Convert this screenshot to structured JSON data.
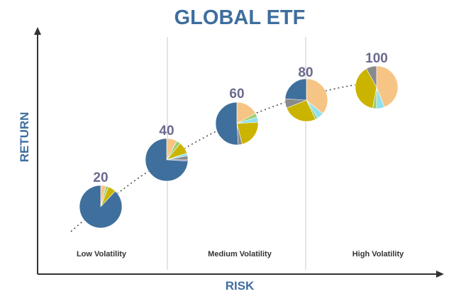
{
  "title": "GLOBAL ETF",
  "y_axis_label": "RETURN",
  "x_axis_label": "RISK",
  "regions": [
    {
      "label": "Low Volatility"
    },
    {
      "label": "Medium Volatility"
    },
    {
      "label": "High Volatility"
    }
  ],
  "colors": {
    "title": "#3e6e9e",
    "number_label": "#6a6a8e",
    "axis": "#333333",
    "divider": "#c8c8c8",
    "curve": "#444444",
    "slice_blue": "#3f6f9c",
    "slice_peach": "#f6c484",
    "slice_green": "#9bcf73",
    "slice_olive": "#cbb400",
    "slice_cyan": "#8fe0f0",
    "slice_gray": "#8a8a8a",
    "slice_purple": "#7a6fae"
  },
  "portfolios": [
    {
      "label": "20",
      "slices": [
        {
          "color": "slice_peach",
          "value": 0.04
        },
        {
          "color": "slice_green",
          "value": 0.02
        },
        {
          "color": "slice_olive",
          "value": 0.06
        },
        {
          "color": "slice_blue",
          "value": 0.88
        }
      ]
    },
    {
      "label": "40",
      "slices": [
        {
          "color": "slice_peach",
          "value": 0.08
        },
        {
          "color": "slice_green",
          "value": 0.03
        },
        {
          "color": "slice_olive",
          "value": 0.09
        },
        {
          "color": "slice_cyan",
          "value": 0.02
        },
        {
          "color": "slice_gray",
          "value": 0.03
        },
        {
          "color": "slice_purple",
          "value": 0.01
        },
        {
          "color": "slice_blue",
          "value": 0.74
        }
      ]
    },
    {
      "label": "60",
      "slices": [
        {
          "color": "slice_peach",
          "value": 0.17
        },
        {
          "color": "slice_green",
          "value": 0.03
        },
        {
          "color": "slice_cyan",
          "value": 0.04
        },
        {
          "color": "slice_olive",
          "value": 0.22
        },
        {
          "color": "slice_gray",
          "value": 0.03
        },
        {
          "color": "slice_blue",
          "value": 0.51
        }
      ]
    },
    {
      "label": "80",
      "slices": [
        {
          "color": "slice_peach",
          "value": 0.36
        },
        {
          "color": "slice_cyan",
          "value": 0.05
        },
        {
          "color": "slice_green",
          "value": 0.02
        },
        {
          "color": "slice_olive",
          "value": 0.26
        },
        {
          "color": "slice_gray",
          "value": 0.07
        },
        {
          "color": "slice_blue",
          "value": 0.24
        }
      ]
    },
    {
      "label": "100",
      "slices": [
        {
          "color": "slice_peach",
          "value": 0.44
        },
        {
          "color": "slice_cyan",
          "value": 0.06
        },
        {
          "color": "slice_green",
          "value": 0.03
        },
        {
          "color": "slice_olive",
          "value": 0.39
        },
        {
          "color": "slice_gray",
          "value": 0.08
        }
      ]
    }
  ]
}
